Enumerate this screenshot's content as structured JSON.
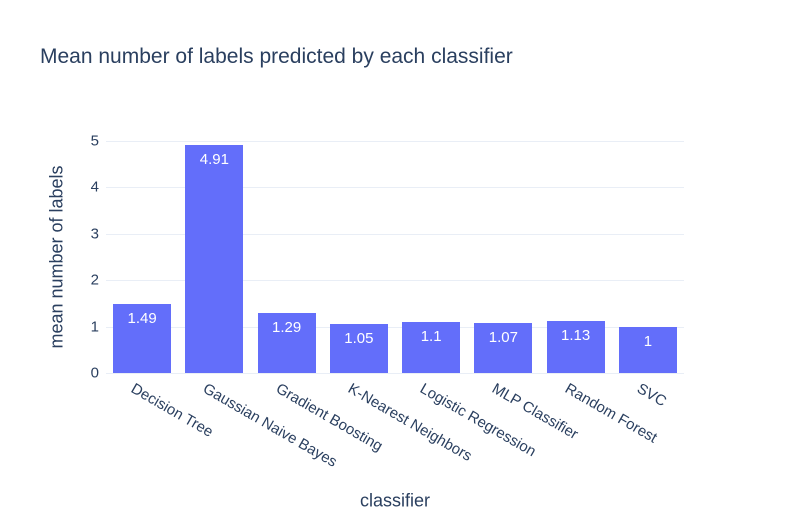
{
  "title": "Mean number of labels predicted by each classifier",
  "colors": {
    "text": "#2a3f5f",
    "bar": "#636efa",
    "grid": "#e9eef6",
    "bar_label_text": "#ffffff",
    "background": "#ffffff"
  },
  "chart_data": {
    "type": "bar",
    "title": "Mean number of labels predicted by each classifier",
    "xlabel": "classifier",
    "ylabel": "mean number of labels",
    "categories": [
      "Decision Tree",
      "Gaussian Naive Bayes",
      "Gradient Boosting",
      "K-Nearest Neighbors",
      "Logistic Regression",
      "MLP Classifier",
      "Random Forest",
      "SVC"
    ],
    "values": [
      1.49,
      4.91,
      1.29,
      1.05,
      1.1,
      1.07,
      1.13,
      1
    ],
    "value_labels": [
      "1.49",
      "4.91",
      "1.29",
      "1.05",
      "1.1",
      "1.07",
      "1.13",
      "1"
    ],
    "yticks": [
      0,
      1,
      2,
      3,
      4,
      5
    ],
    "ylim": [
      0,
      5.2
    ],
    "grid": true,
    "legend": false,
    "xtick_angle_deg": 30
  }
}
